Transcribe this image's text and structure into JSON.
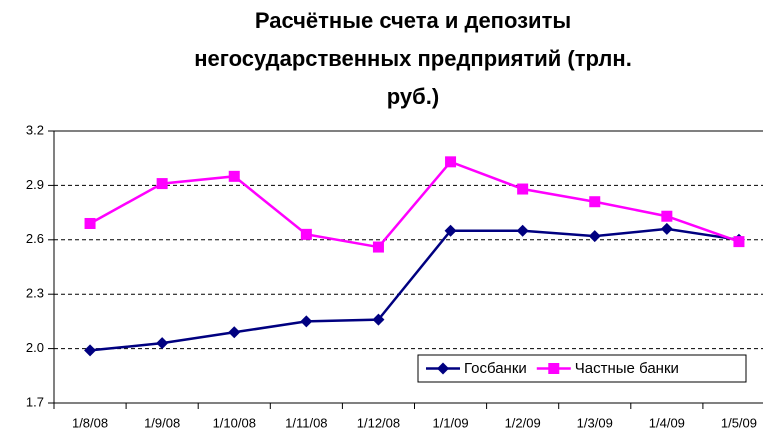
{
  "chart_data": {
    "type": "line",
    "title": "Расчётные счета и депозиты негосударственных предприятий (трлн. руб.)",
    "categories": [
      "1/8/08",
      "1/9/08",
      "1/10/08",
      "1/11/08",
      "1/12/08",
      "1/1/09",
      "1/2/09",
      "1/3/09",
      "1/4/09",
      "1/5/09"
    ],
    "series": [
      {
        "name": "Госбанки",
        "color": "#000080",
        "marker": "diamond",
        "values": [
          1.99,
          2.03,
          2.09,
          2.15,
          2.16,
          2.65,
          2.65,
          2.62,
          2.66,
          2.6
        ]
      },
      {
        "name": "Частные банки",
        "color": "#ff00ff",
        "marker": "square",
        "values": [
          2.69,
          2.91,
          2.95,
          2.63,
          2.56,
          3.03,
          2.88,
          2.81,
          2.73,
          2.59
        ]
      }
    ],
    "ylim": [
      1.7,
      3.2
    ],
    "yticks": [
      1.7,
      {
        "value": 2,
        "label": "2.0"
      },
      2.3,
      2.6,
      2.9,
      3.2
    ],
    "grid": true,
    "legend": "lower right"
  }
}
